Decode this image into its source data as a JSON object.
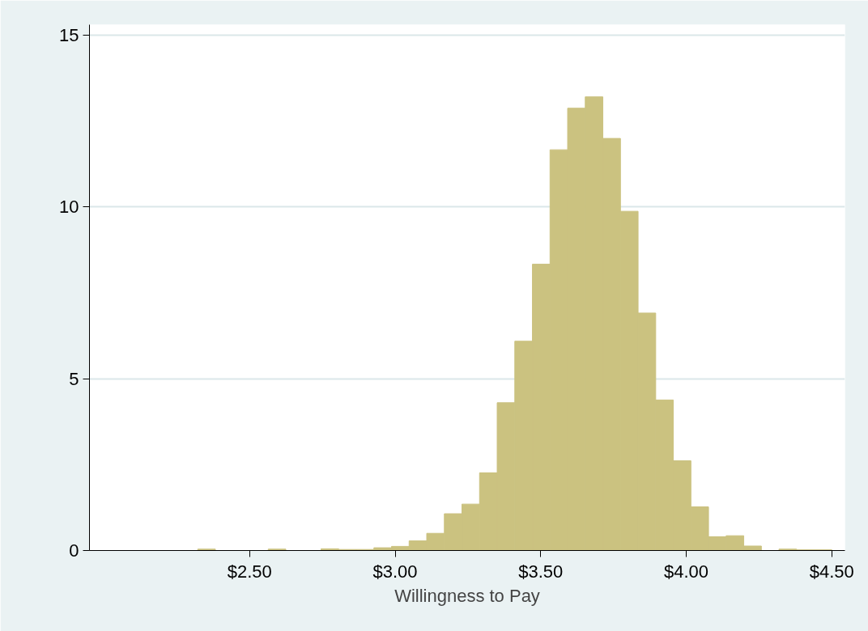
{
  "chart_data": {
    "type": "histogram",
    "xlabel": "Willingness to Pay",
    "bins": [
      2.322,
      2.3825,
      2.443,
      2.5035,
      2.564,
      2.6245,
      2.685,
      2.7455,
      2.806,
      2.8665,
      2.927,
      2.9875,
      3.048,
      3.1085,
      3.169,
      3.2295,
      3.29,
      3.3505,
      3.411,
      3.4715,
      3.532,
      3.5925,
      3.653,
      3.7135,
      3.774,
      3.8345,
      3.895,
      3.9555,
      4.016,
      4.0765,
      4.137,
      4.1975,
      4.258,
      4.3185,
      4.379,
      4.4395,
      4.5
    ],
    "values": [
      0.04,
      0,
      0,
      0,
      0.04,
      0,
      0,
      0.05,
      0.03,
      0.03,
      0.08,
      0.12,
      0.28,
      0.5,
      1.07,
      1.35,
      2.26,
      4.3,
      6.09,
      8.33,
      11.66,
      12.87,
      13.2,
      11.99,
      9.87,
      6.91,
      4.38,
      2.61,
      1.27,
      0.4,
      0.43,
      0.13,
      0,
      0.04,
      0.02,
      0.02
    ],
    "color": "#cbc280",
    "xlim": [
      1.95,
      4.545
    ],
    "ylim": [
      0,
      15.3
    ],
    "xticks": [
      {
        "value": 2.5,
        "label": "$2.50"
      },
      {
        "value": 3.0,
        "label": "$3.00"
      },
      {
        "value": 3.5,
        "label": "$3.50"
      },
      {
        "value": 4.0,
        "label": "$4.00"
      },
      {
        "value": 4.5,
        "label": "$4.50"
      }
    ],
    "yticks": [
      0,
      5,
      10,
      15
    ],
    "grid": "y"
  }
}
